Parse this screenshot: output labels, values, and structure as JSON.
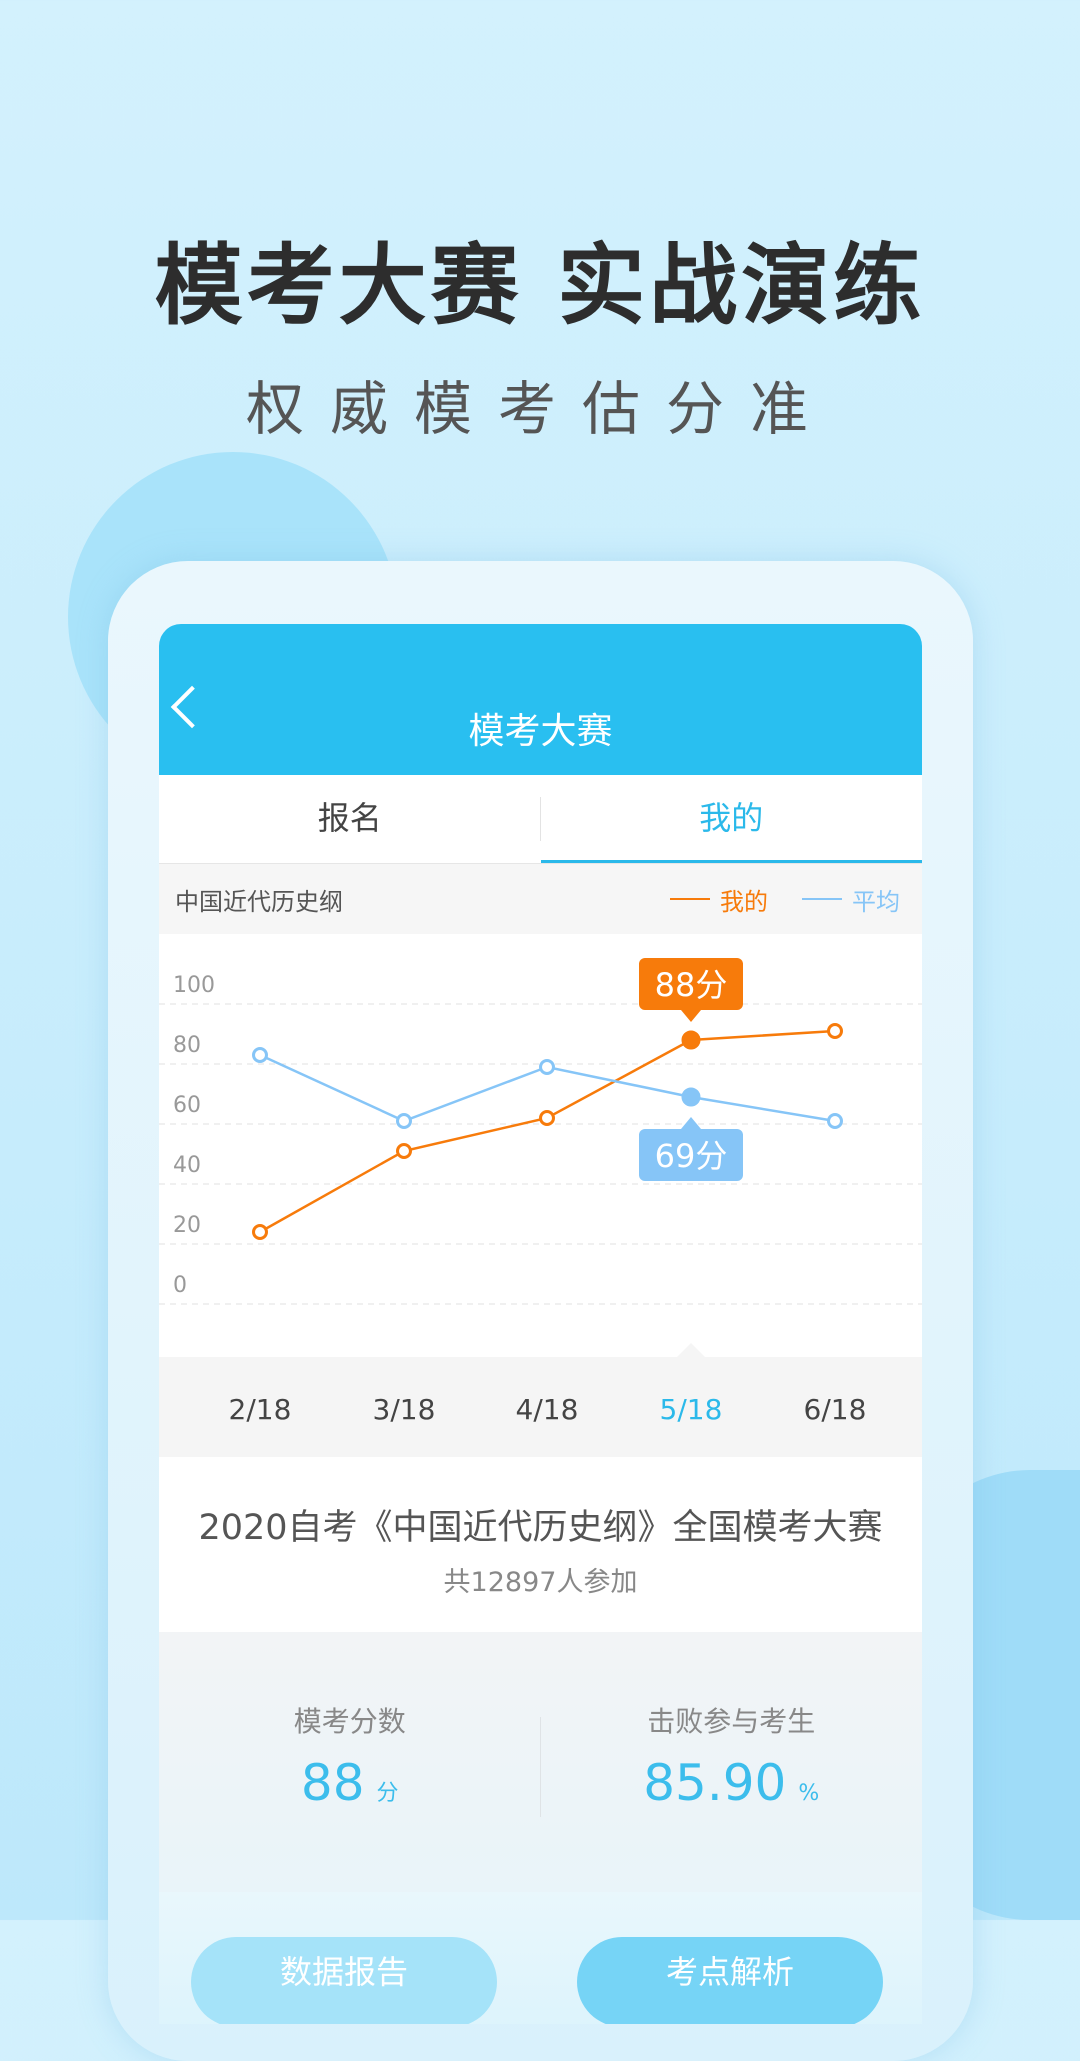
{
  "promo": {
    "title": "模考大赛 实战演练",
    "subtitle": "权威模考估分准"
  },
  "header": {
    "title": "模考大赛",
    "back_icon": "chevron-left-icon"
  },
  "tabs": [
    {
      "label": "报名",
      "active": false
    },
    {
      "label": "我的",
      "active": true
    }
  ],
  "subject": "中国近代历史纲",
  "legend": {
    "mine": "我的",
    "avg": "平均"
  },
  "colors": {
    "header": "#29bff0",
    "mine": "#f77b0b",
    "avg": "#86c5f7",
    "accent": "#2bb9ea"
  },
  "chart_data": {
    "type": "line",
    "categories": [
      "2/18",
      "3/18",
      "4/18",
      "5/18",
      "6/18"
    ],
    "selected_category": "5/18",
    "yticks": [
      "100",
      "80",
      "60",
      "40",
      "20",
      "0"
    ],
    "ylim": [
      0,
      100
    ],
    "grid": true,
    "legend_position": "top-right",
    "series": [
      {
        "name": "我的",
        "values": [
          24,
          51,
          62,
          88,
          91
        ],
        "color": "#f77b0b",
        "callout": "88分"
      },
      {
        "name": "平均",
        "values": [
          83,
          61,
          79,
          69,
          61
        ],
        "color": "#86c5f7",
        "callout": "69分"
      }
    ]
  },
  "contest": {
    "title": "2020自考《中国近代历史纲》全国模考大赛",
    "participants": "共12897人参加"
  },
  "stats": [
    {
      "label": "模考分数",
      "value": "88",
      "unit": "分"
    },
    {
      "label": "击败参与考生",
      "value": "85.90",
      "unit": "%"
    }
  ],
  "buttons": {
    "report": "数据报告",
    "analysis": "考点解析"
  }
}
